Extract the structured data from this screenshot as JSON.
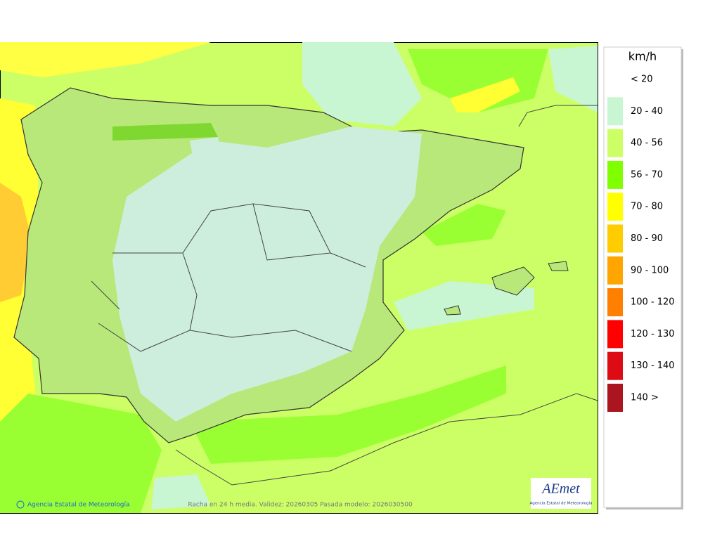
{
  "legend": {
    "title": "km/h",
    "items": [
      {
        "label": "< 20",
        "color": "#ffffff"
      },
      {
        "label": "20 - 40",
        "color": "#c8f5d2"
      },
      {
        "label": "40 - 56",
        "color": "#ccff66"
      },
      {
        "label": "56 - 70",
        "color": "#80ff00"
      },
      {
        "label": "70 - 80",
        "color": "#ffff00"
      },
      {
        "label": "80 - 90",
        "color": "#ffcc00"
      },
      {
        "label": "90 - 100",
        "color": "#ffa500"
      },
      {
        "label": "100 - 120",
        "color": "#ff8000"
      },
      {
        "label": "120 - 130",
        "color": "#ff0000"
      },
      {
        "label": "130 - 140",
        "color": "#dd0c14"
      },
      {
        "label": "140 >",
        "color": "#aa1520"
      }
    ]
  },
  "credit": "Agencia Estatal de Meteorología",
  "caption": "Racha en 24 h media. Validez: 20260305 Pasada modelo: 2026030500",
  "logo": {
    "name": "AEmet",
    "subtitle": "Agencia Estatal de Meteorología"
  }
}
